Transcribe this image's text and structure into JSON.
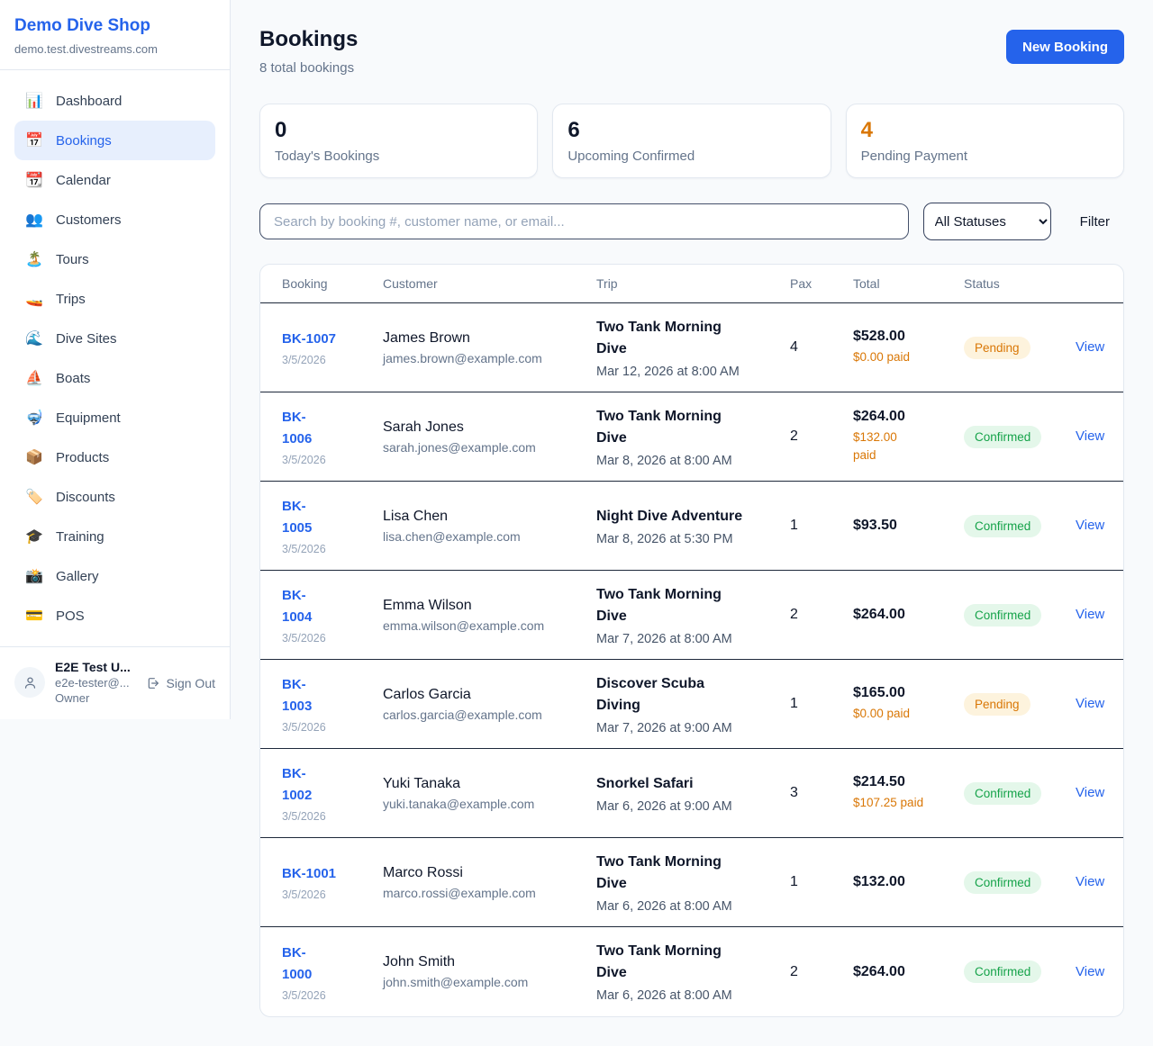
{
  "sidebar": {
    "brand": {
      "name": "Demo Dive Shop",
      "domain": "demo.test.divestreams.com"
    },
    "nav": [
      {
        "label": "Dashboard",
        "icon": "bar-chart-icon",
        "glyph": "📊",
        "active": false
      },
      {
        "label": "Bookings",
        "icon": "calendar-icon",
        "glyph": "📅",
        "active": true
      },
      {
        "label": "Calendar",
        "icon": "tear-off-calendar-icon",
        "glyph": "📆",
        "active": false
      },
      {
        "label": "Customers",
        "icon": "people-icon",
        "glyph": "👥",
        "active": false
      },
      {
        "label": "Tours",
        "icon": "island-icon",
        "glyph": "🏝️",
        "active": false
      },
      {
        "label": "Trips",
        "icon": "speedboat-icon",
        "glyph": "🚤",
        "active": false
      },
      {
        "label": "Dive Sites",
        "icon": "wave-icon",
        "glyph": "🌊",
        "active": false
      },
      {
        "label": "Boats",
        "icon": "sailboat-icon",
        "glyph": "⛵",
        "active": false
      },
      {
        "label": "Equipment",
        "icon": "diving-mask-icon",
        "glyph": "🤿",
        "active": false
      },
      {
        "label": "Products",
        "icon": "package-icon",
        "glyph": "📦",
        "active": false
      },
      {
        "label": "Discounts",
        "icon": "tag-icon",
        "glyph": "🏷️",
        "active": false
      },
      {
        "label": "Training",
        "icon": "graduation-cap-icon",
        "glyph": "🎓",
        "active": false
      },
      {
        "label": "Gallery",
        "icon": "camera-icon",
        "glyph": "📸",
        "active": false
      },
      {
        "label": "POS",
        "icon": "credit-card-icon",
        "glyph": "💳",
        "active": false
      }
    ],
    "user": {
      "name": "E2E Test U...",
      "email": "e2e-tester@...",
      "role": "Owner",
      "sign_out_label": "Sign Out"
    }
  },
  "header": {
    "title": "Bookings",
    "subtitle": "8 total bookings",
    "new_booking_label": "New Booking"
  },
  "stats": [
    {
      "value": "0",
      "label": "Today's Bookings",
      "value_color": "#0f172a"
    },
    {
      "value": "6",
      "label": "Upcoming Confirmed",
      "value_color": "#0f172a"
    },
    {
      "value": "4",
      "label": "Pending Payment",
      "value_color": "#d97706"
    }
  ],
  "filters": {
    "search_placeholder": "Search by booking #, customer name, or email...",
    "status_selected": "All Statuses",
    "filter_label": "Filter"
  },
  "table": {
    "headers": [
      "Booking",
      "Customer",
      "Trip",
      "Pax",
      "Total",
      "Status"
    ],
    "view_label": "View",
    "rows": [
      {
        "id": "BK-1007",
        "wrap_id": false,
        "date": "3/5/2026",
        "customer": "James Brown",
        "email": "james.brown@example.com",
        "trip": "Two Tank Morning Dive",
        "wrap_trip": true,
        "trip_time": "Mar 12, 2026 at 8:00 AM",
        "pax": "4",
        "total": "$528.00",
        "paid": "$0.00 paid",
        "wrap_paid": false,
        "status": "Pending"
      },
      {
        "id": "BK-1006",
        "wrap_id": true,
        "date": "3/5/2026",
        "customer": "Sarah Jones",
        "email": "sarah.jones@example.com",
        "trip": "Two Tank Morning Dive",
        "wrap_trip": true,
        "trip_time": "Mar 8, 2026 at 8:00 AM",
        "pax": "2",
        "total": "$264.00",
        "paid": "$132.00 paid",
        "wrap_paid": true,
        "status": "Confirmed"
      },
      {
        "id": "BK-1005",
        "wrap_id": true,
        "date": "3/5/2026",
        "customer": "Lisa Chen",
        "email": "lisa.chen@example.com",
        "trip": "Night Dive Adventure",
        "wrap_trip": false,
        "trip_time": "Mar 8, 2026 at 5:30 PM",
        "pax": "1",
        "total": "$93.50",
        "paid": "",
        "wrap_paid": false,
        "status": "Confirmed"
      },
      {
        "id": "BK-1004",
        "wrap_id": true,
        "date": "3/5/2026",
        "customer": "Emma Wilson",
        "email": "emma.wilson@example.com",
        "trip": "Two Tank Morning Dive",
        "wrap_trip": true,
        "trip_time": "Mar 7, 2026 at 8:00 AM",
        "pax": "2",
        "total": "$264.00",
        "paid": "",
        "wrap_paid": false,
        "status": "Confirmed"
      },
      {
        "id": "BK-1003",
        "wrap_id": true,
        "date": "3/5/2026",
        "customer": "Carlos Garcia",
        "email": "carlos.garcia@example.com",
        "trip": "Discover Scuba Diving",
        "wrap_trip": true,
        "trip_time": "Mar 7, 2026 at 9:00 AM",
        "pax": "1",
        "total": "$165.00",
        "paid": "$0.00 paid",
        "wrap_paid": false,
        "status": "Pending"
      },
      {
        "id": "BK-1002",
        "wrap_id": true,
        "date": "3/5/2026",
        "customer": "Yuki Tanaka",
        "email": "yuki.tanaka@example.com",
        "trip": "Snorkel Safari",
        "wrap_trip": false,
        "trip_time": "Mar 6, 2026 at 9:00 AM",
        "pax": "3",
        "total": "$214.50",
        "paid": "$107.25 paid",
        "wrap_paid": false,
        "status": "Confirmed"
      },
      {
        "id": "BK-1001",
        "wrap_id": false,
        "date": "3/5/2026",
        "customer": "Marco Rossi",
        "email": "marco.rossi@example.com",
        "trip": "Two Tank Morning Dive",
        "wrap_trip": true,
        "trip_time": "Mar 6, 2026 at 8:00 AM",
        "pax": "1",
        "total": "$132.00",
        "paid": "",
        "wrap_paid": false,
        "status": "Confirmed"
      },
      {
        "id": "BK-1000",
        "wrap_id": true,
        "date": "3/5/2026",
        "customer": "John Smith",
        "email": "john.smith@example.com",
        "trip": "Two Tank Morning Dive",
        "wrap_trip": true,
        "trip_time": "Mar 6, 2026 at 8:00 AM",
        "pax": "2",
        "total": "$264.00",
        "paid": "",
        "wrap_paid": false,
        "status": "Confirmed"
      }
    ]
  },
  "colors": {
    "accent_blue": "#2563eb",
    "pending_text": "#d97706",
    "confirmed_text": "#16a34a",
    "row_divider": "#1e293b"
  }
}
